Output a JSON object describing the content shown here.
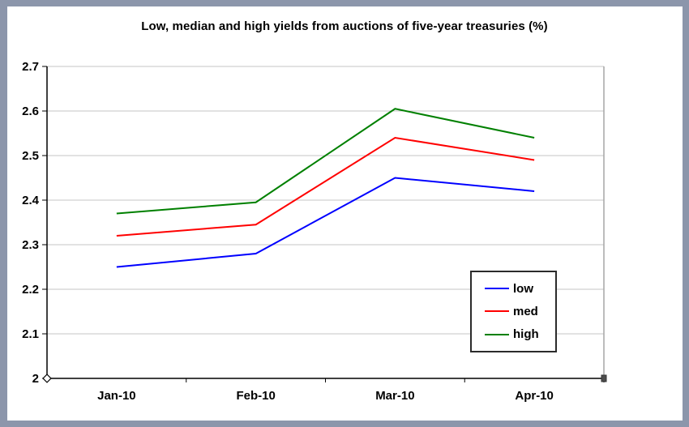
{
  "frame": {
    "border_color": "#8C96AB",
    "background_color": "#FFFFFF"
  },
  "title": "Low, median and high yields from auctions of five-year treasuries (%)",
  "chart_data": {
    "type": "line",
    "title": "Low, median and high yields from auctions of five-year treasuries (%)",
    "categories": [
      "Jan-10",
      "Feb-10",
      "Mar-10",
      "Apr-10"
    ],
    "series": [
      {
        "name": "low",
        "color": "#0000FF",
        "values": [
          2.25,
          2.28,
          2.45,
          2.42
        ]
      },
      {
        "name": "med",
        "color": "#FF0000",
        "values": [
          2.32,
          2.345,
          2.54,
          2.49
        ]
      },
      {
        "name": "high",
        "color": "#008000",
        "values": [
          2.37,
          2.395,
          2.605,
          2.54
        ]
      }
    ],
    "xlabel": "",
    "ylabel": "",
    "ylim": [
      2,
      2.7
    ],
    "ytick_step": 0.1,
    "ytick_labels": [
      "2",
      "2.1",
      "2.2",
      "2.3",
      "2.4",
      "2.5",
      "2.6",
      "2.7"
    ],
    "grid": true,
    "gridline_color": "#C6C6C6",
    "plot_border_color": "#A6A6A6",
    "axis_color": "#000000",
    "legend_position": "inside lower right",
    "legend_entries": [
      "low",
      "med",
      "high"
    ]
  }
}
